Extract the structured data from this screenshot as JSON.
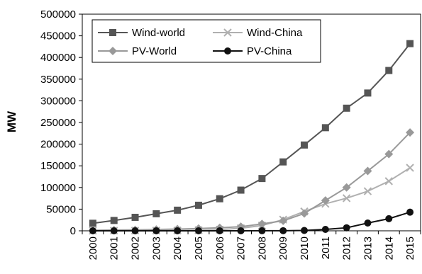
{
  "chart_data": {
    "type": "line",
    "ylabel": "MW",
    "xlabel": "",
    "ylim": [
      0,
      500000
    ],
    "yticks": [
      0,
      50000,
      100000,
      150000,
      200000,
      250000,
      300000,
      350000,
      400000,
      450000,
      500000
    ],
    "x": [
      "2000",
      "2001",
      "2002",
      "2003",
      "2004",
      "2005",
      "2006",
      "2007",
      "2008",
      "2009",
      "2010",
      "2011",
      "2012",
      "2013",
      "2014",
      "2015"
    ],
    "grid": false,
    "legend": "top-left",
    "series": [
      {
        "name": "Wind-world",
        "marker": "square",
        "color": "#555555",
        "values": [
          17400,
          23900,
          31100,
          39400,
          47600,
          59000,
          74000,
          93900,
          120700,
          159000,
          198000,
          238000,
          283000,
          318000,
          370000,
          432000
        ]
      },
      {
        "name": "Wind-China",
        "marker": "x",
        "color": "#b0b0b0",
        "values": [
          350,
          400,
          470,
          570,
          760,
          1260,
          2600,
          5900,
          12200,
          25800,
          44700,
          62400,
          75300,
          91400,
          114600,
          145400
        ]
      },
      {
        "name": "PV-World",
        "marker": "diamond",
        "color": "#999999",
        "values": [
          1300,
          1800,
          2300,
          3000,
          4000,
          5400,
          7000,
          9500,
          16000,
          23000,
          40000,
          70000,
          100000,
          138000,
          177000,
          227000
        ]
      },
      {
        "name": "PV-China",
        "marker": "circle",
        "color": "#111111",
        "values": [
          20,
          25,
          40,
          50,
          60,
          70,
          80,
          100,
          140,
          300,
          800,
          3300,
          7000,
          18000,
          28000,
          43000
        ]
      }
    ]
  }
}
